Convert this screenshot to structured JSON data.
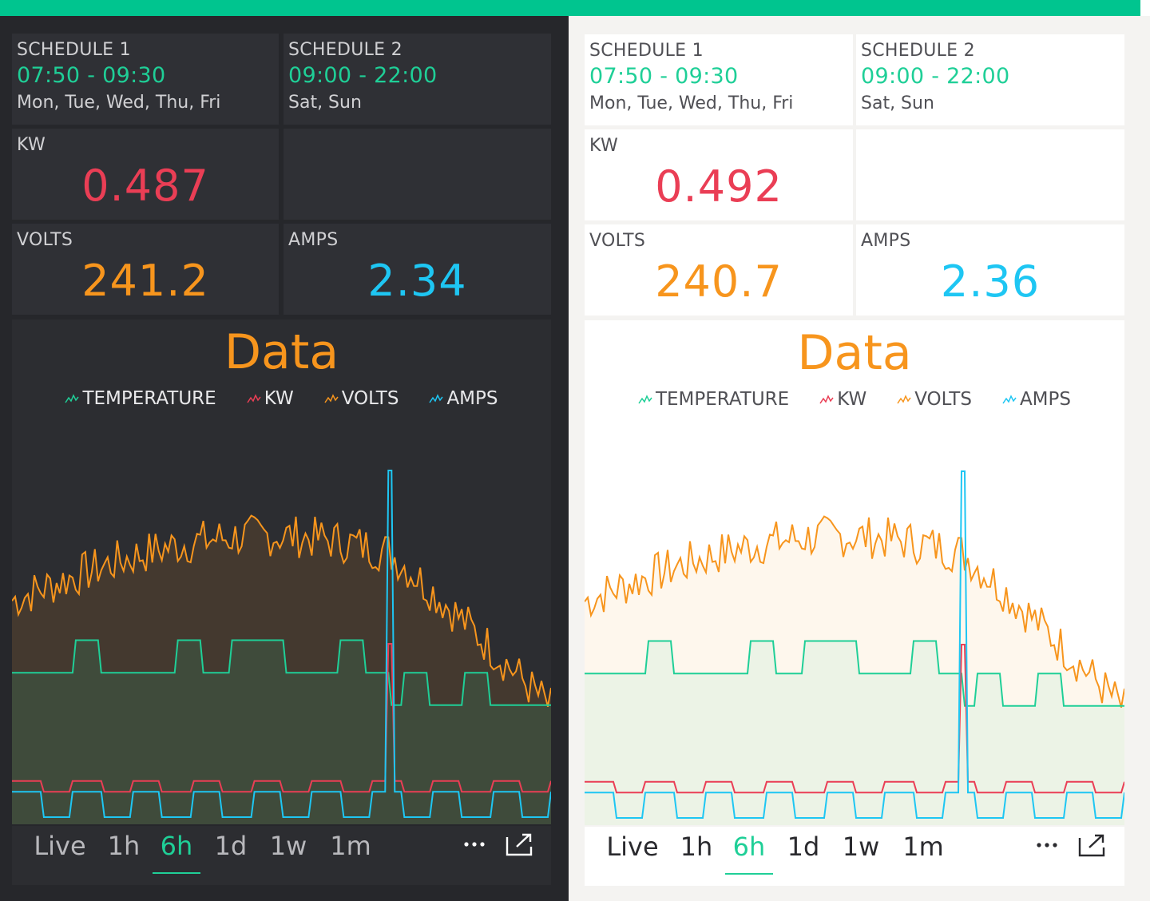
{
  "colors": {
    "accent": "#00c58f",
    "kw": "#ea3e55",
    "volts": "#f7951d",
    "amps": "#1ec6f3",
    "temperature": "#1fcf97"
  },
  "panels": {
    "dark": {
      "schedule1": {
        "label": "SCHEDULE 1",
        "time": "07:50 - 09:30",
        "days": "Mon, Tue, Wed, Thu, Fri"
      },
      "schedule2": {
        "label": "SCHEDULE 2",
        "time": "09:00 - 22:00",
        "days": "Sat, Sun"
      },
      "kw": {
        "label": "KW",
        "value": "0.487"
      },
      "volts": {
        "label": "VOLTS",
        "value": "241.2"
      },
      "amps": {
        "label": "AMPS",
        "value": "2.34"
      },
      "chart": {
        "title": "Data"
      }
    },
    "light": {
      "schedule1": {
        "label": "SCHEDULE 1",
        "time": "07:50 - 09:30",
        "days": "Mon, Tue, Wed, Thu, Fri"
      },
      "schedule2": {
        "label": "SCHEDULE 2",
        "time": "09:00 - 22:00",
        "days": "Sat, Sun"
      },
      "kw": {
        "label": "KW",
        "value": "0.492"
      },
      "volts": {
        "label": "VOLTS",
        "value": "240.7"
      },
      "amps": {
        "label": "AMPS",
        "value": "2.36"
      },
      "chart": {
        "title": "Data"
      }
    }
  },
  "legend": [
    "TEMPERATURE",
    "KW",
    "VOLTS",
    "AMPS"
  ],
  "range_buttons": [
    "Live",
    "1h",
    "6h",
    "1d",
    "1w",
    "1m"
  ],
  "active_range": "6h",
  "icons": {
    "more": "more-horizontal-icon",
    "export": "export-icon"
  },
  "chart_data": {
    "type": "line",
    "series": [
      {
        "name": "VOLTS",
        "color": "#f7951d",
        "values": []
      },
      {
        "name": "TEMPERATURE",
        "color": "#1fcf97",
        "values": []
      },
      {
        "name": "KW",
        "color": "#ea3e55",
        "values": []
      },
      {
        "name": "AMPS",
        "color": "#1ec6f3",
        "values": []
      }
    ],
    "grid": false,
    "legend_placement": "top-center"
  }
}
